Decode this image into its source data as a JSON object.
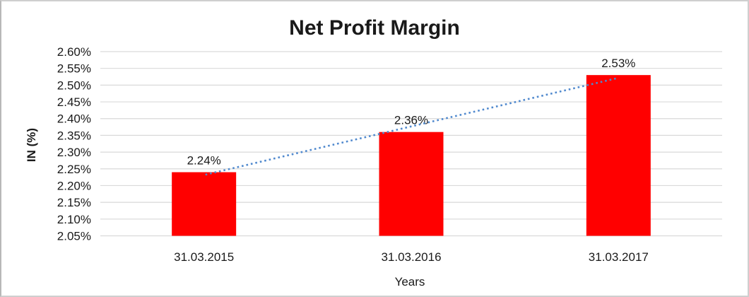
{
  "chart_data": {
    "type": "bar",
    "title": "Net Profit Margin",
    "xlabel": "Years",
    "ylabel": "IN (%)",
    "categories": [
      "31.03.2015",
      "31.03.2016",
      "31.03.2017"
    ],
    "values": [
      2.24,
      2.36,
      2.53
    ],
    "value_labels": [
      "2.24%",
      "2.36%",
      "2.53%"
    ],
    "ylim": [
      2.05,
      2.6
    ],
    "ytick_step": 0.05,
    "ytick_labels": [
      "2.60%",
      "2.55%",
      "2.50%",
      "2.45%",
      "2.40%",
      "2.35%",
      "2.30%",
      "2.25%",
      "2.20%",
      "2.15%",
      "2.10%",
      "2.05%"
    ],
    "grid": true,
    "legend": "none",
    "bar_color": "#ff0000",
    "gridline_color": "#d9d9d9",
    "text_color": "#1a1a1a",
    "trendline": {
      "type": "linear",
      "style": "dotted",
      "color": "#5089ce"
    }
  }
}
